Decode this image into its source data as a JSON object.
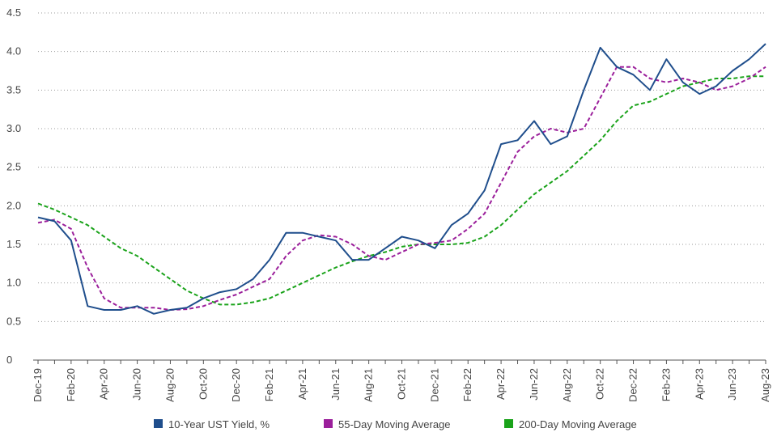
{
  "chart_data": {
    "type": "line",
    "categories": [
      "Dec-19",
      null,
      "Feb-20",
      null,
      "Apr-20",
      null,
      "Jun-20",
      null,
      "Aug-20",
      null,
      "Oct-20",
      null,
      "Dec-20",
      null,
      "Feb-21",
      null,
      "Apr-21",
      null,
      "Jun-21",
      null,
      "Aug-21",
      null,
      "Oct-21",
      null,
      "Dec-21",
      null,
      "Feb-22",
      null,
      "Apr-22",
      null,
      "Jun-22",
      null,
      "Aug-22",
      null,
      "Oct-22",
      null,
      "Dec-22",
      null,
      "Feb-23",
      null,
      "Apr-23",
      null,
      "Jun-23",
      null,
      "Aug-23"
    ],
    "series": [
      {
        "name": "10-Year UST Yield, %",
        "color": "#1f4e8c",
        "dashed": false,
        "values": [
          1.85,
          1.8,
          1.55,
          0.7,
          0.65,
          0.65,
          0.7,
          0.6,
          0.65,
          0.68,
          0.8,
          0.88,
          0.92,
          1.05,
          1.3,
          1.65,
          1.65,
          1.6,
          1.55,
          1.3,
          1.3,
          1.45,
          1.6,
          1.55,
          1.45,
          1.75,
          1.9,
          2.2,
          2.8,
          2.85,
          3.1,
          2.8,
          2.9,
          3.5,
          4.05,
          3.8,
          3.7,
          3.5,
          3.9,
          3.6,
          3.45,
          3.55,
          3.75,
          3.9,
          4.1
        ]
      },
      {
        "name": "55-Day Moving Average",
        "color": "#9b1f9b",
        "dashed": true,
        "values": [
          1.78,
          1.82,
          1.7,
          1.2,
          0.8,
          0.68,
          0.68,
          0.68,
          0.65,
          0.66,
          0.7,
          0.78,
          0.85,
          0.95,
          1.05,
          1.35,
          1.55,
          1.62,
          1.6,
          1.5,
          1.35,
          1.3,
          1.4,
          1.5,
          1.52,
          1.55,
          1.7,
          1.9,
          2.3,
          2.7,
          2.9,
          3.0,
          2.95,
          3.0,
          3.4,
          3.8,
          3.8,
          3.65,
          3.6,
          3.65,
          3.6,
          3.5,
          3.55,
          3.65,
          3.8
        ]
      },
      {
        "name": "200-Day Moving Average",
        "color": "#1aa31a",
        "dashed": true,
        "values": [
          2.03,
          1.95,
          1.85,
          1.75,
          1.6,
          1.45,
          1.35,
          1.2,
          1.05,
          0.9,
          0.8,
          0.72,
          0.72,
          0.75,
          0.8,
          0.9,
          1.0,
          1.1,
          1.2,
          1.28,
          1.35,
          1.4,
          1.47,
          1.5,
          1.5,
          1.5,
          1.52,
          1.6,
          1.75,
          1.95,
          2.15,
          2.3,
          2.45,
          2.65,
          2.85,
          3.1,
          3.3,
          3.35,
          3.45,
          3.55,
          3.6,
          3.65,
          3.65,
          3.68,
          3.68
        ]
      }
    ],
    "ylim": [
      0,
      4.5
    ],
    "yticks": [
      0,
      0.5,
      {
        "value": 1,
        "label": "1.0"
      },
      1.5,
      {
        "value": 2,
        "label": "2.0"
      },
      2.5,
      {
        "value": 3,
        "label": "3.0"
      },
      3.5,
      {
        "value": 4,
        "label": "4.0"
      },
      4.5
    ],
    "grid": true,
    "legend": "bottom"
  }
}
